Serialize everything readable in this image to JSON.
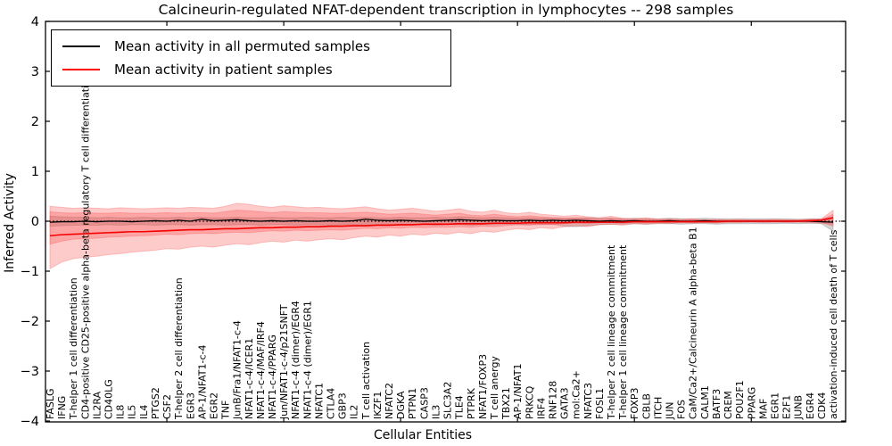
{
  "figure": {
    "title": "Calcineurin-regulated NFAT-dependent transcription in lymphocytes -- 298 samples",
    "xlabel": "Cellular Entities",
    "ylabel": "Inferred Activity"
  },
  "legend": {
    "entries": [
      {
        "label": "Mean activity in all permuted samples",
        "color": "#000000"
      },
      {
        "label": "Mean activity in patient samples",
        "color": "#ff0000"
      }
    ]
  },
  "chart_data": {
    "type": "line",
    "title": "Calcineurin-regulated NFAT-dependent transcription in lymphocytes -- 298 samples",
    "xlabel": "Cellular Entities",
    "ylabel": "Inferred Activity",
    "ylim": [
      -4,
      4
    ],
    "grid": false,
    "zero_line": true,
    "legend_position": "upper left",
    "yticks": [
      {
        "label": "4",
        "value": 4
      },
      {
        "label": "3",
        "value": 3
      },
      {
        "label": "2",
        "value": 2
      },
      {
        "label": "1",
        "value": 1
      },
      {
        "label": "0",
        "value": 0
      },
      {
        "label": "−1",
        "value": -1
      },
      {
        "label": "−2",
        "value": -2
      },
      {
        "label": "−3",
        "value": -3
      },
      {
        "label": "−4",
        "value": -4
      }
    ],
    "categories": [
      "FASLG",
      "IFNG",
      "T-helper 1 cell differentiation",
      "CD4-positive CD25-positive alpha-beta regulatory T cell differentiation",
      "IL2RA",
      "CD40LG",
      "IL8",
      "IL5",
      "IL4",
      "PTGS2",
      "CSF2",
      "T-helper 2 cell differentiation",
      "EGR3",
      "AP-1/NFAT1-c-4",
      "EGR2",
      "TNF",
      "JunB/Fra1/NFAT1-c-4",
      "NFAT1-c-4/ICER1",
      "NFAT1-c-4/MAF/IRF4",
      "NFAT1-c-4/PPARG",
      "Jun/NFAT1-c-4/p21SNFT",
      "NFAT1-c-4 (dimer)/EGR4",
      "NFAT1-c-4 (dimer)/EGR1",
      "NFATC1",
      "CTLA4",
      "GBP3",
      "IL2",
      "T cell activation",
      "IKZF1",
      "NFATC2",
      "DGKA",
      "PTPN1",
      "CASP3",
      "IL3",
      "SLC3A2",
      "TLE4",
      "PTPRK",
      "NFAT1/FOXP3",
      "T cell anergy",
      "TBX21",
      "AP-1/NFAT1",
      "PRKCQ",
      "IRF4",
      "RNF128",
      "GATA3",
      "mol:Ca2+",
      "NFATC3",
      "FOSL1",
      "T-helper 2 cell lineage commitment",
      "T-helper 1 cell lineage commitment",
      "FOXP3",
      "CBLB",
      "ITCH",
      "JUN",
      "FOS",
      "CaM/Ca2+/Calcineurin A alpha-beta B1",
      "CALM1",
      "BATF3",
      "CREM",
      "POU2F1",
      "PPARG",
      "MAF",
      "EGR1",
      "E2F1",
      "JUNB",
      "EGR4",
      "CDK4",
      "activation-induced cell death of T cells"
    ],
    "series": [
      {
        "name": "Mean activity in all permuted samples",
        "color": "#000000",
        "values": [
          -0.02,
          -0.01,
          -0.01,
          0,
          -0.01,
          0,
          0,
          -0.01,
          0,
          0.01,
          0,
          0.02,
          0,
          0.04,
          0.01,
          0.02,
          0.03,
          0.01,
          0,
          0.01,
          0,
          0.01,
          0,
          0,
          0.01,
          0,
          0.01,
          0.04,
          0.02,
          0.01,
          0.02,
          0.01,
          0,
          0.01,
          0.02,
          0.03,
          0.02,
          0.01,
          0.02,
          0.01,
          0.01,
          0.02,
          0.01,
          0.02,
          0.01,
          0.02,
          0.01,
          0,
          0.01,
          0,
          0.01,
          0,
          0,
          0.01,
          0,
          0,
          0.01,
          0,
          0,
          0,
          0,
          0,
          0,
          0,
          0,
          0,
          -0.01,
          -0.02
        ]
      },
      {
        "name": "Mean activity in patient samples",
        "color": "#f40000",
        "values": [
          -0.29,
          -0.27,
          -0.26,
          -0.25,
          -0.24,
          -0.23,
          -0.22,
          -0.21,
          -0.21,
          -0.2,
          -0.19,
          -0.18,
          -0.17,
          -0.17,
          -0.16,
          -0.15,
          -0.15,
          -0.14,
          -0.13,
          -0.13,
          -0.12,
          -0.12,
          -0.11,
          -0.11,
          -0.1,
          -0.1,
          -0.09,
          -0.09,
          -0.08,
          -0.08,
          -0.07,
          -0.07,
          -0.06,
          -0.06,
          -0.06,
          -0.05,
          -0.05,
          -0.05,
          -0.04,
          -0.04,
          -0.04,
          -0.03,
          -0.03,
          -0.03,
          -0.03,
          -0.02,
          -0.02,
          -0.02,
          -0.02,
          -0.02,
          -0.01,
          -0.01,
          -0.01,
          -0.01,
          -0.01,
          -0.01,
          -0.01,
          -0.01,
          0,
          0,
          0,
          0,
          0,
          0,
          0,
          0.01,
          0.02,
          0.07
        ]
      }
    ],
    "bands": [
      {
        "name": "permuted-samples-band",
        "color": "rgba(120,120,120,0.32)",
        "upper": [
          0.1,
          0.09,
          0.08,
          0.08,
          0.07,
          0.08,
          0.07,
          0.07,
          0.08,
          0.07,
          0.07,
          0.08,
          0.07,
          0.08,
          0.07,
          0.07,
          0.08,
          0.07,
          0.07,
          0.08,
          0.07,
          0.07,
          0.08,
          0.07,
          0.07,
          0.08,
          0.07,
          0.08,
          0.07,
          0.07,
          0.08,
          0.07,
          0.07,
          0.08,
          0.07,
          0.09,
          0.08,
          0.07,
          0.08,
          0.07,
          0.06,
          0.07,
          0.06,
          0.07,
          0.06,
          0.06,
          0.07,
          0.06,
          0.06,
          0.05,
          0.06,
          0.05,
          0.05,
          0.06,
          0.05,
          0.05,
          0.06,
          0.05,
          0.05,
          0.05,
          0.05,
          0.05,
          0.05,
          0.05,
          0.04,
          0.05,
          0.05,
          0.08
        ],
        "lower": [
          -0.1,
          -0.09,
          -0.08,
          -0.08,
          -0.08,
          -0.07,
          -0.08,
          -0.07,
          -0.07,
          -0.08,
          -0.07,
          -0.07,
          -0.08,
          -0.07,
          -0.07,
          -0.08,
          -0.07,
          -0.07,
          -0.08,
          -0.07,
          -0.07,
          -0.08,
          -0.07,
          -0.07,
          -0.08,
          -0.07,
          -0.07,
          -0.08,
          -0.07,
          -0.07,
          -0.08,
          -0.07,
          -0.07,
          -0.08,
          -0.07,
          -0.07,
          -0.08,
          -0.07,
          -0.07,
          -0.06,
          -0.07,
          -0.06,
          -0.07,
          -0.06,
          -0.1,
          -0.11,
          -0.09,
          -0.07,
          -0.06,
          -0.06,
          -0.05,
          -0.06,
          -0.05,
          -0.05,
          -0.06,
          -0.05,
          -0.05,
          -0.06,
          -0.05,
          -0.05,
          -0.05,
          -0.05,
          -0.05,
          -0.04,
          -0.05,
          -0.04,
          -0.05,
          -0.2
        ]
      },
      {
        "name": "patient-samples-band-outer",
        "color": "rgba(252,70,70,0.28)",
        "upper": [
          0.3,
          0.28,
          0.26,
          0.27,
          0.26,
          0.25,
          0.27,
          0.26,
          0.25,
          0.26,
          0.27,
          0.26,
          0.28,
          0.27,
          0.26,
          0.3,
          0.36,
          0.34,
          0.3,
          0.28,
          0.31,
          0.29,
          0.27,
          0.28,
          0.26,
          0.25,
          0.27,
          0.29,
          0.25,
          0.22,
          0.24,
          0.26,
          0.23,
          0.2,
          0.22,
          0.25,
          0.2,
          0.18,
          0.22,
          0.17,
          0.15,
          0.18,
          0.14,
          0.12,
          0.1,
          0.12,
          0.09,
          0.07,
          0.1,
          0.06,
          0.05,
          0.07,
          0.04,
          0.05,
          0.04,
          0.05,
          0.03,
          0.04,
          0.03,
          0.04,
          0.03,
          0.03,
          0.04,
          0.03,
          0.03,
          0.04,
          0.05,
          0.22
        ],
        "lower": [
          -0.95,
          -0.82,
          -0.75,
          -0.72,
          -0.7,
          -0.67,
          -0.65,
          -0.62,
          -0.6,
          -0.58,
          -0.55,
          -0.56,
          -0.52,
          -0.5,
          -0.52,
          -0.48,
          -0.45,
          -0.47,
          -0.43,
          -0.4,
          -0.42,
          -0.38,
          -0.4,
          -0.37,
          -0.35,
          -0.37,
          -0.33,
          -0.3,
          -0.32,
          -0.28,
          -0.3,
          -0.26,
          -0.28,
          -0.24,
          -0.26,
          -0.22,
          -0.25,
          -0.2,
          -0.22,
          -0.18,
          -0.15,
          -0.17,
          -0.13,
          -0.15,
          -0.11,
          -0.09,
          -0.11,
          -0.07,
          -0.06,
          -0.08,
          -0.05,
          -0.06,
          -0.04,
          -0.05,
          -0.03,
          -0.04,
          -0.03,
          -0.04,
          -0.03,
          -0.03,
          -0.02,
          -0.03,
          -0.02,
          -0.03,
          -0.02,
          -0.03,
          -0.04,
          -0.06
        ]
      },
      {
        "name": "patient-samples-band-inner",
        "color": "rgba(252,70,70,0.28)",
        "upper": [
          0.19,
          0.17,
          0.16,
          0.17,
          0.16,
          0.16,
          0.17,
          0.16,
          0.16,
          0.16,
          0.17,
          0.16,
          0.17,
          0.17,
          0.16,
          0.19,
          0.22,
          0.21,
          0.19,
          0.17,
          0.19,
          0.18,
          0.17,
          0.17,
          0.16,
          0.16,
          0.17,
          0.18,
          0.16,
          0.14,
          0.15,
          0.16,
          0.14,
          0.12,
          0.14,
          0.16,
          0.12,
          0.11,
          0.14,
          0.11,
          0.09,
          0.11,
          0.09,
          0.07,
          0.06,
          0.07,
          0.06,
          0.04,
          0.06,
          0.04,
          0.03,
          0.04,
          0.03,
          0.03,
          0.02,
          0.03,
          0.02,
          0.02,
          0.02,
          0.02,
          0.02,
          0.02,
          0.02,
          0.02,
          0.02,
          0.03,
          0.03,
          0.14
        ],
        "lower": [
          -0.46,
          -0.4,
          -0.36,
          -0.35,
          -0.34,
          -0.32,
          -0.31,
          -0.3,
          -0.29,
          -0.28,
          -0.26,
          -0.27,
          -0.25,
          -0.24,
          -0.25,
          -0.23,
          -0.22,
          -0.23,
          -0.21,
          -0.19,
          -0.2,
          -0.18,
          -0.19,
          -0.18,
          -0.17,
          -0.18,
          -0.16,
          -0.14,
          -0.15,
          -0.13,
          -0.14,
          -0.12,
          -0.13,
          -0.12,
          -0.12,
          -0.11,
          -0.12,
          -0.1,
          -0.11,
          -0.09,
          -0.07,
          -0.08,
          -0.06,
          -0.07,
          -0.05,
          -0.04,
          -0.05,
          -0.03,
          -0.03,
          -0.04,
          -0.02,
          -0.03,
          -0.02,
          -0.02,
          -0.01,
          -0.02,
          -0.01,
          -0.02,
          -0.01,
          -0.01,
          -0.01,
          -0.01,
          -0.01,
          -0.01,
          -0.01,
          -0.01,
          -0.02,
          -0.1
        ]
      }
    ]
  }
}
